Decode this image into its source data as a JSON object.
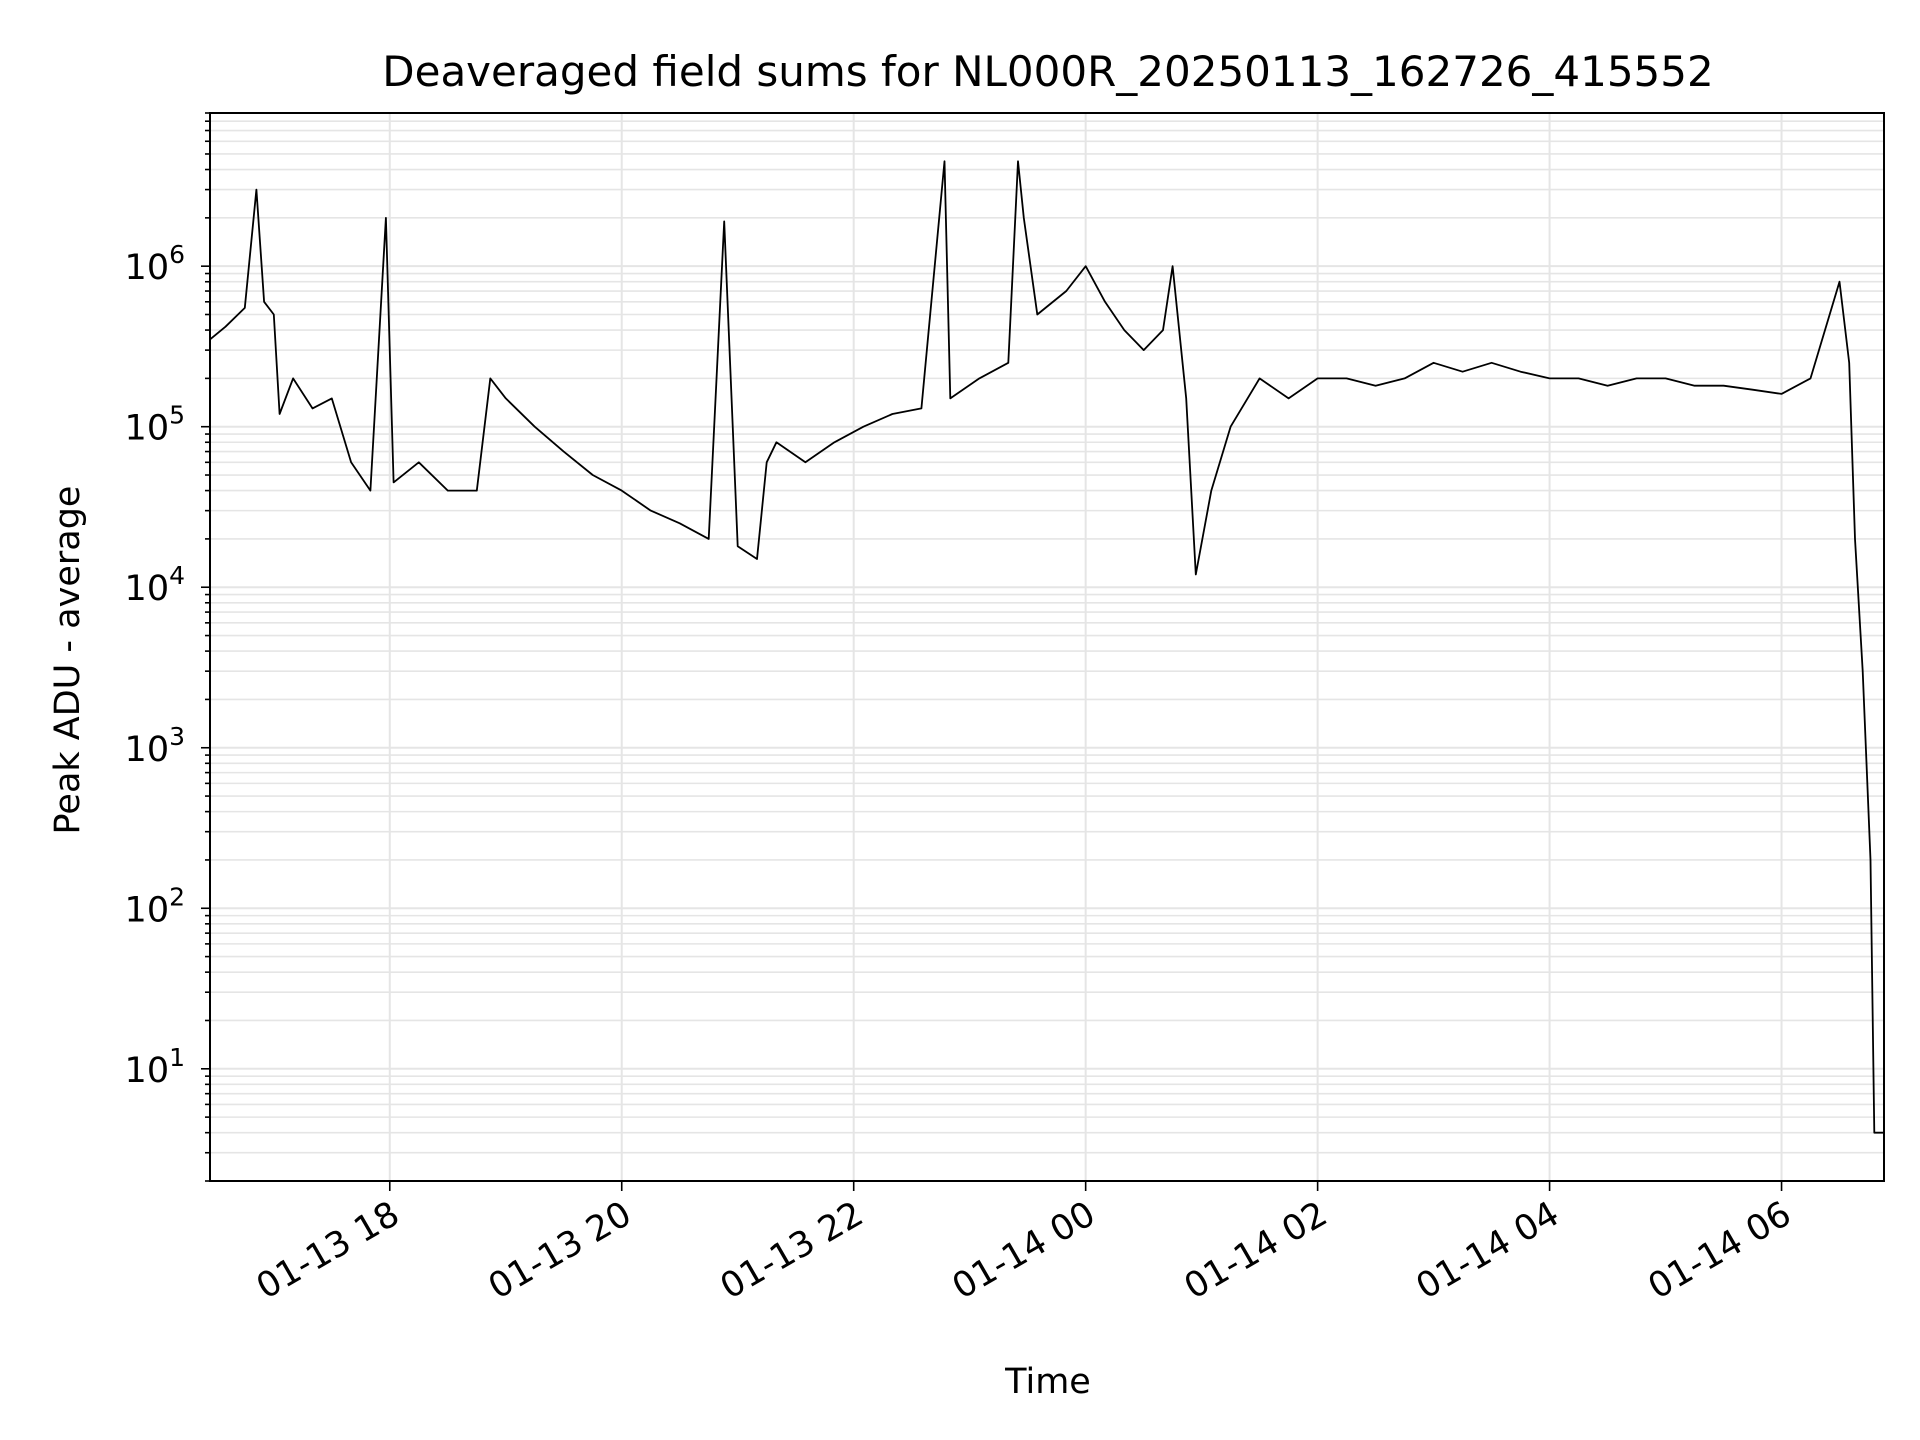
{
  "chart_data": {
    "type": "line",
    "title": "Deaveraged field sums for NL000R_20250113_162726_415552",
    "xlabel": "Time",
    "ylabel": "Peak ADU - average",
    "yscale": "log",
    "ylim": [
      2,
      9000000
    ],
    "xlim": [
      "01-13 16:27",
      "01-14 06:53"
    ],
    "grid": true,
    "line_color": "#000000",
    "grid_color": "#e5e5e5",
    "x_ticks": [
      {
        "t": "01-13 18:00",
        "label": "01-13 18"
      },
      {
        "t": "01-13 20:00",
        "label": "01-13 20"
      },
      {
        "t": "01-13 22:00",
        "label": "01-13 22"
      },
      {
        "t": "01-14 00:00",
        "label": "01-14 00"
      },
      {
        "t": "01-14 02:00",
        "label": "01-14 02"
      },
      {
        "t": "01-14 04:00",
        "label": "01-14 04"
      },
      {
        "t": "01-14 06:00",
        "label": "01-14 06"
      }
    ],
    "y_ticks": [
      {
        "value": 10,
        "exp": "1"
      },
      {
        "value": 100,
        "exp": "2"
      },
      {
        "value": 1000,
        "exp": "3"
      },
      {
        "value": 10000,
        "exp": "4"
      },
      {
        "value": 100000,
        "exp": "5"
      },
      {
        "value": 1000000,
        "exp": "6"
      }
    ],
    "y_tick_base": "10",
    "series": [
      {
        "points": [
          [
            "01-13 16:27",
            350000
          ],
          [
            "01-13 16:35",
            420000
          ],
          [
            "01-13 16:45",
            550000
          ],
          [
            "01-13 16:51",
            3000000
          ],
          [
            "01-13 16:55",
            600000
          ],
          [
            "01-13 17:00",
            500000
          ],
          [
            "01-13 17:03",
            120000
          ],
          [
            "01-13 17:10",
            200000
          ],
          [
            "01-13 17:20",
            130000
          ],
          [
            "01-13 17:30",
            150000
          ],
          [
            "01-13 17:40",
            60000
          ],
          [
            "01-13 17:50",
            40000
          ],
          [
            "01-13 17:58",
            2000000
          ],
          [
            "01-13 18:02",
            45000
          ],
          [
            "01-13 18:15",
            60000
          ],
          [
            "01-13 18:30",
            40000
          ],
          [
            "01-13 18:45",
            40000
          ],
          [
            "01-13 18:52",
            200000
          ],
          [
            "01-13 19:00",
            150000
          ],
          [
            "01-13 19:15",
            100000
          ],
          [
            "01-13 19:30",
            70000
          ],
          [
            "01-13 19:45",
            50000
          ],
          [
            "01-13 20:00",
            40000
          ],
          [
            "01-13 20:15",
            30000
          ],
          [
            "01-13 20:30",
            25000
          ],
          [
            "01-13 20:45",
            20000
          ],
          [
            "01-13 20:53",
            1900000
          ],
          [
            "01-13 21:00",
            18000
          ],
          [
            "01-13 21:10",
            15000
          ],
          [
            "01-13 21:15",
            60000
          ],
          [
            "01-13 21:20",
            80000
          ],
          [
            "01-13 21:35",
            60000
          ],
          [
            "01-13 21:50",
            80000
          ],
          [
            "01-13 22:05",
            100000
          ],
          [
            "01-13 22:20",
            120000
          ],
          [
            "01-13 22:35",
            130000
          ],
          [
            "01-13 22:47",
            4500000
          ],
          [
            "01-13 22:50",
            150000
          ],
          [
            "01-13 23:05",
            200000
          ],
          [
            "01-13 23:20",
            250000
          ],
          [
            "01-13 23:25",
            4500000
          ],
          [
            "01-13 23:28",
            2000000
          ],
          [
            "01-13 23:35",
            500000
          ],
          [
            "01-13 23:50",
            700000
          ],
          [
            "01-14 00:00",
            1000000
          ],
          [
            "01-14 00:10",
            600000
          ],
          [
            "01-14 00:20",
            400000
          ],
          [
            "01-14 00:30",
            300000
          ],
          [
            "01-14 00:40",
            400000
          ],
          [
            "01-14 00:45",
            1000000
          ],
          [
            "01-14 00:52",
            150000
          ],
          [
            "01-14 00:57",
            12000
          ],
          [
            "01-14 01:05",
            40000
          ],
          [
            "01-14 01:15",
            100000
          ],
          [
            "01-14 01:30",
            200000
          ],
          [
            "01-14 01:45",
            150000
          ],
          [
            "01-14 02:00",
            200000
          ],
          [
            "01-14 02:15",
            200000
          ],
          [
            "01-14 02:30",
            180000
          ],
          [
            "01-14 02:45",
            200000
          ],
          [
            "01-14 03:00",
            250000
          ],
          [
            "01-14 03:15",
            220000
          ],
          [
            "01-14 03:30",
            250000
          ],
          [
            "01-14 03:45",
            220000
          ],
          [
            "01-14 04:00",
            200000
          ],
          [
            "01-14 04:15",
            200000
          ],
          [
            "01-14 04:30",
            180000
          ],
          [
            "01-14 04:45",
            200000
          ],
          [
            "01-14 05:00",
            200000
          ],
          [
            "01-14 05:15",
            180000
          ],
          [
            "01-14 05:30",
            180000
          ],
          [
            "01-14 05:45",
            170000
          ],
          [
            "01-14 06:00",
            160000
          ],
          [
            "01-14 06:15",
            200000
          ],
          [
            "01-14 06:30",
            800000
          ],
          [
            "01-14 06:35",
            250000
          ],
          [
            "01-14 06:38",
            20000
          ],
          [
            "01-14 06:42",
            3000
          ],
          [
            "01-14 06:46",
            200
          ],
          [
            "01-14 06:48",
            4
          ],
          [
            "01-14 06:53",
            4
          ]
        ]
      }
    ]
  }
}
